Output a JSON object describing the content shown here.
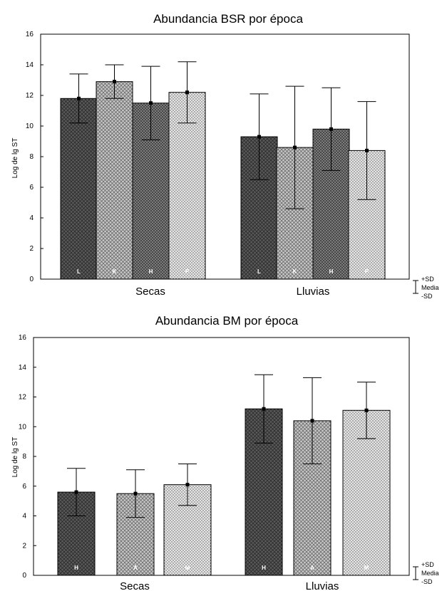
{
  "chart_data": [
    {
      "type": "bar",
      "title": "Abundancia BSR por época",
      "xlabel": "",
      "ylabel": "Log de lg ST",
      "ylim": [
        0,
        16
      ],
      "yticks": [
        "0",
        "2",
        "4",
        "6",
        "8",
        "10",
        "12",
        "14",
        "16"
      ],
      "categories": [
        "Secas",
        "Lluvias"
      ],
      "bar_labels": [
        "L",
        "K",
        "H",
        "P"
      ],
      "series": [
        {
          "values": [
            11.8,
            9.3
          ],
          "sd": [
            1.6,
            2.8
          ],
          "color": "#5a5a5a"
        },
        {
          "values": [
            12.9,
            8.6
          ],
          "sd": [
            1.1,
            4.0
          ],
          "color": "#a8a8a8"
        },
        {
          "values": [
            11.5,
            9.8
          ],
          "sd": [
            2.4,
            2.7
          ],
          "color": "#828282"
        },
        {
          "values": [
            12.2,
            8.4
          ],
          "sd": [
            2.0,
            3.2
          ],
          "color": "#d4d4d4"
        }
      ],
      "legend": {
        "plus_sd": "+SD",
        "mean": "Media",
        "minus_sd": "-SD"
      }
    },
    {
      "type": "bar",
      "title": "Abundancia BM por época",
      "xlabel": "",
      "ylabel": "Log de lg ST",
      "ylim": [
        0,
        16
      ],
      "yticks": [
        "0",
        "2",
        "4",
        "6",
        "8",
        "10",
        "12",
        "14",
        "16"
      ],
      "categories": [
        "Secas",
        "Lluvias"
      ],
      "bar_labels": [
        "H",
        "A",
        "M"
      ],
      "series": [
        {
          "values": [
            5.6,
            11.2
          ],
          "sd": [
            1.6,
            2.3
          ],
          "color": "#5a5a5a"
        },
        {
          "values": [
            5.5,
            10.4
          ],
          "sd": [
            1.6,
            2.9
          ],
          "color": "#a8a8a8"
        },
        {
          "values": [
            6.1,
            11.1
          ],
          "sd": [
            1.4,
            1.9
          ],
          "color": "#d4d4d4"
        }
      ],
      "legend": {
        "plus_sd": "+SD",
        "mean": "Media",
        "minus_sd": "-SD"
      }
    }
  ]
}
